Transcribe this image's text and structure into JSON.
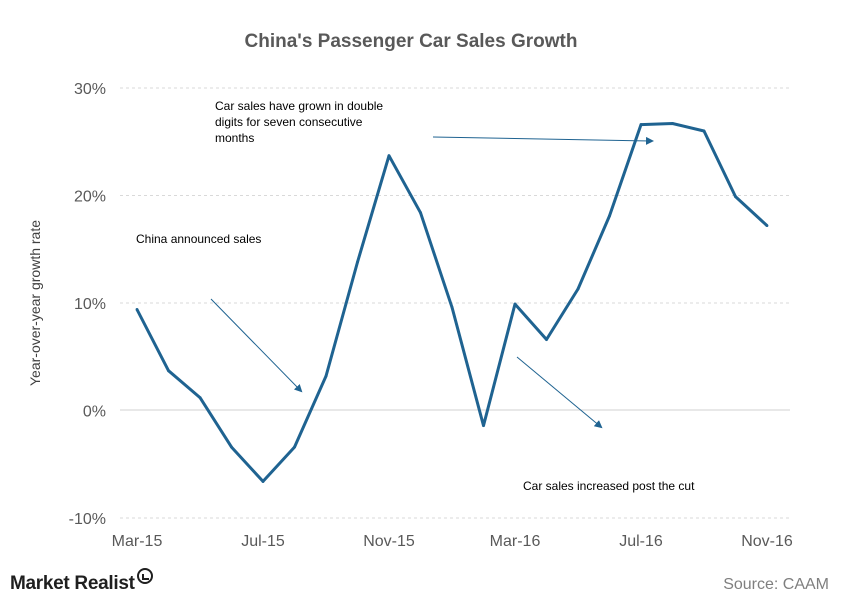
{
  "chart_data": {
    "type": "line",
    "title": "China's  Passenger  Car  Sales  Growth",
    "ylabel": "Year-over-year  growth rate",
    "xlabel": "",
    "ylim": [
      -10,
      30
    ],
    "yticks": [
      30,
      20,
      10,
      0,
      -10
    ],
    "ytick_labels": [
      "30%",
      "20%",
      "10%",
      "0%",
      "-10%"
    ],
    "x": [
      "Mar-15",
      "Apr-15",
      "May-15",
      "Jun-15",
      "Jul-15",
      "Aug-15",
      "Sep-15",
      "Oct-15",
      "Nov-15",
      "Dec-15",
      "Jan-16",
      "Feb-16",
      "Mar-16",
      "Apr-16",
      "May-16",
      "Jun-16",
      "Jul-16",
      "Aug-16",
      "Sep-16",
      "Oct-16",
      "Nov-16"
    ],
    "xtick_labels": [
      "Mar-15",
      "Jul-15",
      "Nov-15",
      "Mar-16",
      "Jul-16",
      "Nov-16"
    ],
    "series": [
      {
        "values": [
          9.4,
          3.7,
          1.2,
          -3.4,
          -6.6,
          -3.4,
          3.2,
          13.8,
          23.7,
          18.4,
          9.6,
          -1.4,
          9.9,
          6.6,
          11.3,
          18.1,
          26.6,
          26.7,
          26.0,
          19.9,
          17.2
        ]
      }
    ],
    "annotations": [
      {
        "lines": [
          "Car sales have  grown  in double",
          "digits for seven  consecutive",
          "months"
        ]
      },
      {
        "lines": [
          "China  announced  sales"
        ]
      },
      {
        "lines": [
          "Car sales increased post the cut"
        ]
      }
    ],
    "grid": true,
    "legend": "none",
    "line_color": "#1f6391"
  },
  "branding": {
    "logo_text": "Market Realist",
    "source": "Source:  CAAM"
  }
}
